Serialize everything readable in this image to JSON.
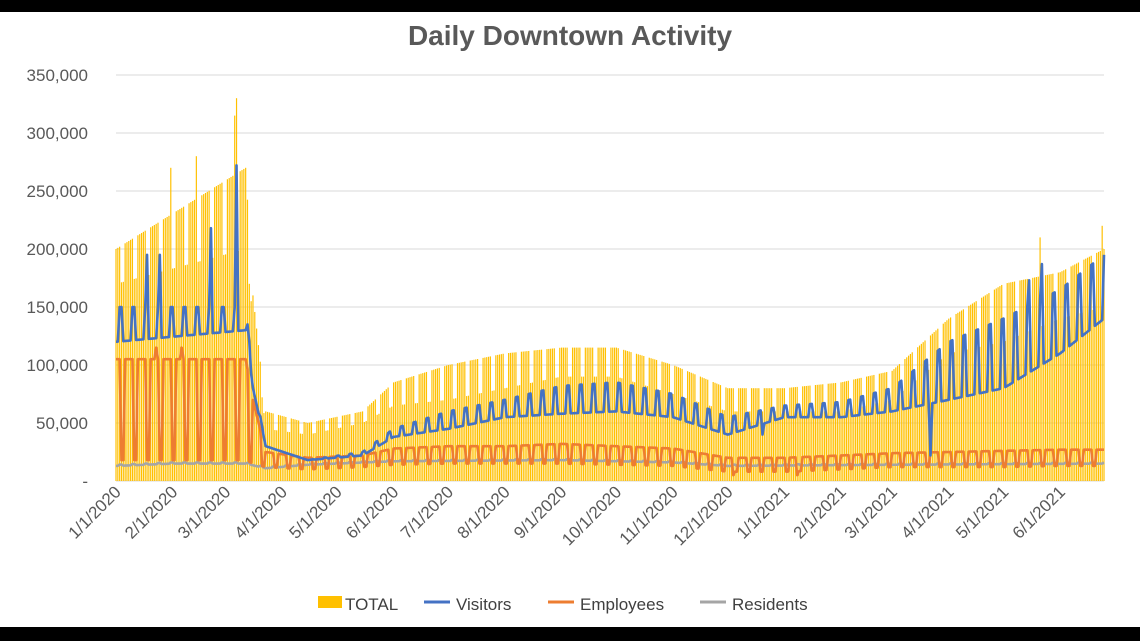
{
  "chart_data": {
    "type": "bar+line",
    "title": "Daily Downtown Activity",
    "xlabel": "",
    "ylabel": "",
    "x_start": "1/1/2020",
    "x_end": "6/25/2021",
    "ylim": [
      0,
      350000
    ],
    "yticks": [
      0,
      50000,
      100000,
      150000,
      200000,
      250000,
      300000,
      350000
    ],
    "ytick_labels": [
      "-",
      "50,000",
      "100,000",
      "150,000",
      "200,000",
      "250,000",
      "300,000",
      "350,000"
    ],
    "xticks": [
      "1/1/2020",
      "2/1/2020",
      "3/1/2020",
      "4/1/2020",
      "5/1/2020",
      "6/1/2020",
      "7/1/2020",
      "8/1/2020",
      "9/1/2020",
      "10/1/2020",
      "11/1/2020",
      "12/1/2020",
      "1/1/2021",
      "2/1/2021",
      "3/1/2021",
      "4/1/2021",
      "5/1/2021",
      "6/1/2021"
    ],
    "grid": "horizontal",
    "legend": "bottom",
    "series": [
      {
        "name": "TOTAL",
        "kind": "bar",
        "color": "#FFC000",
        "weekday_level": [
          [
            "1/1/2020",
            200000
          ],
          [
            "3/12/2020",
            270000
          ],
          [
            "3/16/2020",
            160000
          ],
          [
            "3/23/2020",
            60000
          ],
          [
            "4/15/2020",
            50000
          ],
          [
            "5/15/2020",
            60000
          ],
          [
            "6/1/2020",
            85000
          ],
          [
            "7/1/2020",
            100000
          ],
          [
            "8/1/2020",
            110000
          ],
          [
            "9/1/2020",
            115000
          ],
          [
            "10/1/2020",
            115000
          ],
          [
            "11/1/2020",
            100000
          ],
          [
            "12/1/2020",
            80000
          ],
          [
            "1/1/2021",
            80000
          ],
          [
            "2/1/2021",
            85000
          ],
          [
            "3/1/2021",
            95000
          ],
          [
            "4/1/2021",
            140000
          ],
          [
            "5/1/2021",
            170000
          ],
          [
            "6/1/2021",
            180000
          ],
          [
            "6/25/2021",
            200000
          ]
        ],
        "weekend_level": [
          [
            "1/1/2020",
            170000
          ],
          [
            "3/12/2020",
            200000
          ],
          [
            "3/16/2020",
            140000
          ],
          [
            "3/23/2020",
            45000
          ],
          [
            "4/15/2020",
            40000
          ],
          [
            "5/15/2020",
            50000
          ],
          [
            "6/1/2020",
            65000
          ],
          [
            "7/1/2020",
            70000
          ],
          [
            "8/1/2020",
            80000
          ],
          [
            "9/1/2020",
            90000
          ],
          [
            "10/1/2020",
            90000
          ],
          [
            "11/1/2020",
            75000
          ],
          [
            "12/1/2020",
            60000
          ],
          [
            "1/1/2021",
            60000
          ],
          [
            "2/1/2021",
            60000
          ],
          [
            "3/1/2021",
            70000
          ],
          [
            "4/1/2021",
            110000
          ],
          [
            "5/1/2021",
            120000
          ],
          [
            "6/1/2021",
            140000
          ],
          [
            "6/25/2021",
            150000
          ]
        ],
        "peaks": [
          [
            "1/31/2020",
            270000
          ],
          [
            "2/14/2020",
            280000
          ],
          [
            "3/6/2020",
            315000
          ],
          [
            "3/7/2020",
            330000
          ],
          [
            "4/16/2021",
            155000
          ],
          [
            "5/21/2021",
            210000
          ],
          [
            "6/24/2021",
            220000
          ]
        ]
      },
      {
        "name": "Visitors",
        "kind": "line",
        "color": "#4472C4",
        "weekday_level": [
          [
            "1/1/2020",
            120000
          ],
          [
            "3/12/2020",
            130000
          ],
          [
            "3/16/2020",
            80000
          ],
          [
            "3/23/2020",
            30000
          ],
          [
            "4/15/2020",
            18000
          ],
          [
            "5/15/2020",
            22000
          ],
          [
            "6/1/2020",
            38000
          ],
          [
            "7/1/2020",
            45000
          ],
          [
            "8/1/2020",
            55000
          ],
          [
            "9/1/2020",
            58000
          ],
          [
            "10/1/2020",
            60000
          ],
          [
            "11/1/2020",
            55000
          ],
          [
            "12/1/2020",
            40000
          ],
          [
            "1/1/2021",
            55000
          ],
          [
            "2/1/2021",
            55000
          ],
          [
            "3/1/2021",
            60000
          ],
          [
            "4/1/2021",
            70000
          ],
          [
            "5/1/2021",
            80000
          ],
          [
            "6/1/2021",
            110000
          ],
          [
            "6/25/2021",
            140000
          ]
        ],
        "weekend_level": [
          [
            "1/1/2020",
            150000
          ],
          [
            "3/12/2020",
            150000
          ],
          [
            "3/16/2020",
            90000
          ],
          [
            "3/23/2020",
            30000
          ],
          [
            "4/15/2020",
            18000
          ],
          [
            "5/15/2020",
            25000
          ],
          [
            "6/1/2020",
            45000
          ],
          [
            "7/1/2020",
            60000
          ],
          [
            "8/1/2020",
            70000
          ],
          [
            "9/1/2020",
            82000
          ],
          [
            "10/1/2020",
            85000
          ],
          [
            "11/1/2020",
            75000
          ],
          [
            "12/1/2020",
            55000
          ],
          [
            "1/1/2021",
            65000
          ],
          [
            "2/1/2021",
            68000
          ],
          [
            "3/1/2021",
            80000
          ],
          [
            "4/1/2021",
            120000
          ],
          [
            "5/1/2021",
            140000
          ],
          [
            "6/1/2021",
            165000
          ],
          [
            "6/25/2021",
            195000
          ]
        ],
        "peaks": [
          [
            "1/18/2020",
            195000
          ],
          [
            "1/25/2020",
            195000
          ],
          [
            "2/22/2020",
            218000
          ],
          [
            "3/7/2020",
            272000
          ],
          [
            "12/20/2020",
            40000
          ],
          [
            "3/22/2021",
            22000
          ],
          [
            "5/15/2021",
            173000
          ],
          [
            "5/22/2021",
            187000
          ],
          [
            "6/26/2021",
            196000
          ]
        ]
      },
      {
        "name": "Employees",
        "kind": "line",
        "color": "#ED7D31",
        "weekday_level": [
          [
            "1/1/2020",
            105000
          ],
          [
            "3/12/2020",
            105000
          ],
          [
            "3/16/2020",
            70000
          ],
          [
            "3/23/2020",
            25000
          ],
          [
            "4/15/2020",
            20000
          ],
          [
            "5/15/2020",
            22000
          ],
          [
            "6/1/2020",
            28000
          ],
          [
            "7/1/2020",
            30000
          ],
          [
            "8/1/2020",
            30000
          ],
          [
            "9/1/2020",
            32000
          ],
          [
            "10/1/2020",
            30000
          ],
          [
            "11/1/2020",
            28000
          ],
          [
            "12/1/2020",
            20000
          ],
          [
            "1/1/2021",
            20000
          ],
          [
            "2/1/2021",
            22000
          ],
          [
            "3/1/2021",
            24000
          ],
          [
            "4/1/2021",
            25000
          ],
          [
            "5/1/2021",
            26000
          ],
          [
            "6/1/2021",
            27000
          ],
          [
            "6/25/2021",
            27000
          ]
        ],
        "weekend_level": [
          [
            "1/1/2020",
            18000
          ],
          [
            "3/12/2020",
            18000
          ],
          [
            "3/16/2020",
            15000
          ],
          [
            "3/23/2020",
            12000
          ],
          [
            "4/15/2020",
            10000
          ],
          [
            "5/15/2020",
            12000
          ],
          [
            "6/1/2020",
            14000
          ],
          [
            "7/1/2020",
            15000
          ],
          [
            "8/1/2020",
            15000
          ],
          [
            "9/1/2020",
            15000
          ],
          [
            "10/1/2020",
            14000
          ],
          [
            "11/1/2020",
            13000
          ],
          [
            "12/1/2020",
            8000
          ],
          [
            "1/1/2021",
            8000
          ],
          [
            "2/1/2021",
            10000
          ],
          [
            "3/1/2021",
            12000
          ],
          [
            "4/1/2021",
            12000
          ],
          [
            "5/1/2021",
            12000
          ],
          [
            "6/1/2021",
            13000
          ],
          [
            "6/25/2021",
            13000
          ]
        ],
        "peaks": [
          [
            "1/23/2020",
            115000
          ],
          [
            "2/6/2020",
            115000
          ],
          [
            "12/4/2020",
            5000
          ],
          [
            "1/8/2021",
            5000
          ]
        ]
      },
      {
        "name": "Residents",
        "kind": "line",
        "color": "#A5A5A5",
        "weekday_level": [
          [
            "1/1/2020",
            13000
          ],
          [
            "2/1/2020",
            15000
          ],
          [
            "3/12/2020",
            15000
          ],
          [
            "3/23/2020",
            11000
          ],
          [
            "4/15/2020",
            14000
          ],
          [
            "6/1/2020",
            17000
          ],
          [
            "9/1/2020",
            18000
          ],
          [
            "11/1/2020",
            16000
          ],
          [
            "12/1/2020",
            13000
          ],
          [
            "3/1/2021",
            14000
          ],
          [
            "6/25/2021",
            15000
          ]
        ],
        "weekend_level": [
          [
            "1/1/2020",
            14000
          ],
          [
            "2/1/2020",
            16000
          ],
          [
            "3/12/2020",
            16000
          ],
          [
            "3/23/2020",
            12000
          ],
          [
            "4/15/2020",
            15000
          ],
          [
            "6/1/2020",
            18000
          ],
          [
            "9/1/2020",
            19000
          ],
          [
            "11/1/2020",
            17000
          ],
          [
            "12/1/2020",
            14000
          ],
          [
            "3/1/2021",
            15000
          ],
          [
            "6/25/2021",
            16000
          ]
        ],
        "peaks": []
      }
    ]
  }
}
